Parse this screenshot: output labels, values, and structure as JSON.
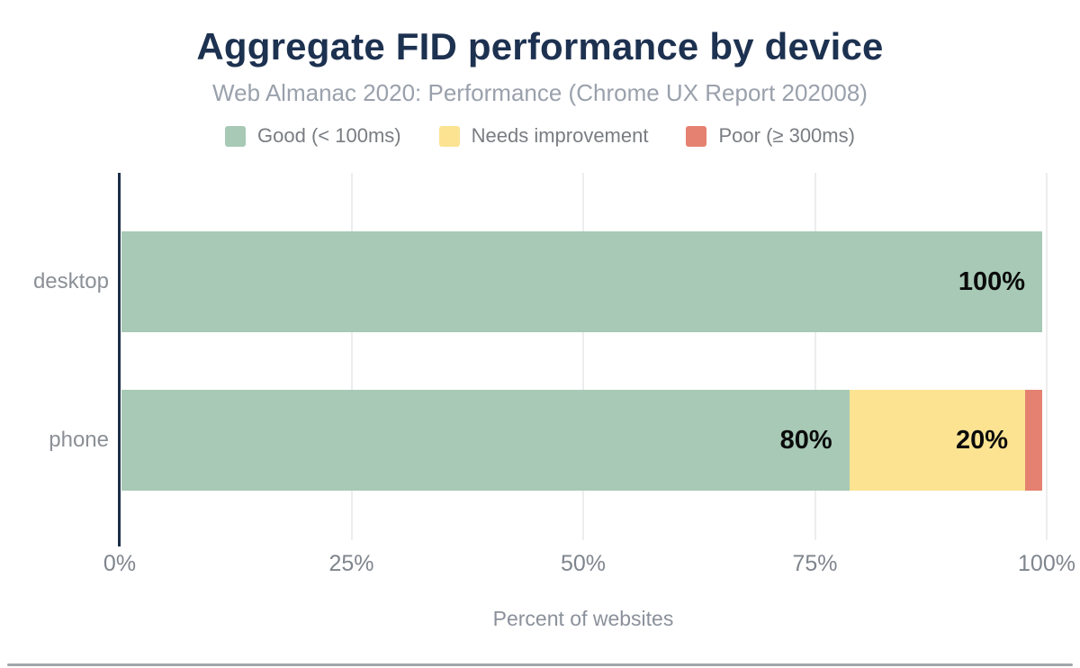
{
  "chart_data": {
    "type": "bar",
    "orientation": "horizontal",
    "stacked": true,
    "title": "Aggregate FID performance by device",
    "subtitle": "Web Almanac 2020: Performance (Chrome UX Report 202008)",
    "xlabel": "Percent of websites",
    "categories": [
      "desktop",
      "phone"
    ],
    "series": [
      {
        "name": "Good (< 100ms)",
        "color": "#a7c9b6",
        "values": [
          100,
          80
        ],
        "labels": [
          "100%",
          "80%"
        ]
      },
      {
        "name": "Needs improvement",
        "color": "#fce392",
        "values": [
          0,
          19.3
        ],
        "labels": [
          "",
          "20%"
        ]
      },
      {
        "name": "Poor (≥ 300ms)",
        "color": "#e58170",
        "values": [
          0,
          0.7
        ],
        "labels": [
          "",
          ""
        ]
      }
    ],
    "x_ticks": [
      "0%",
      "25%",
      "50%",
      "75%",
      "100%"
    ],
    "xlim": [
      0,
      100
    ],
    "grid": "vertical",
    "legend_position": "top"
  }
}
